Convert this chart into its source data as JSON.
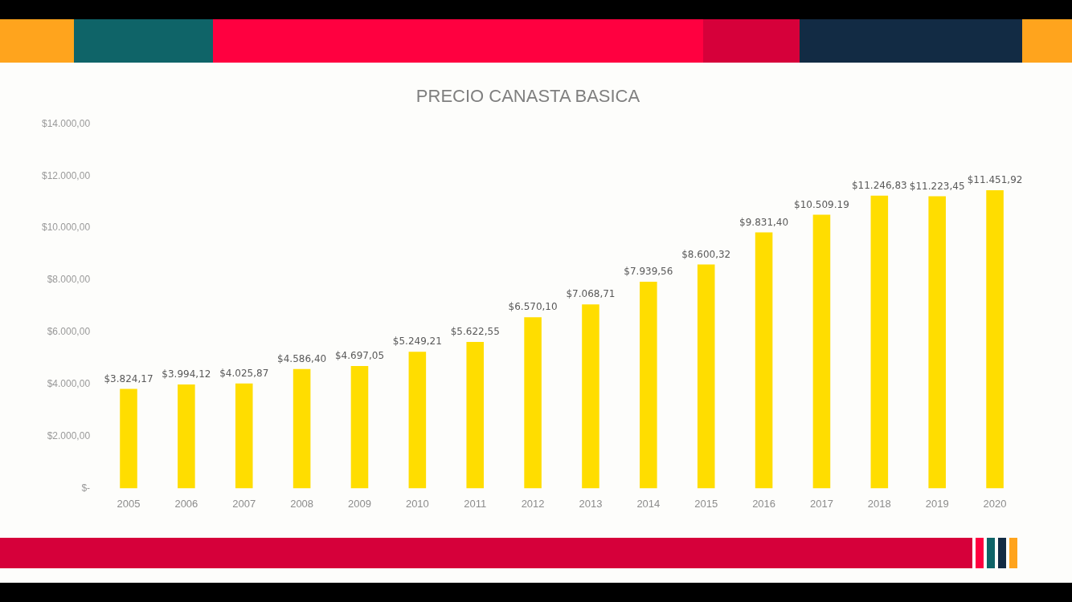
{
  "chart_data": {
    "type": "bar",
    "title": "PRECIO CANASTA BASICA",
    "categories": [
      "2005",
      "2006",
      "2007",
      "2008",
      "2009",
      "2010",
      "2011",
      "2012",
      "2013",
      "2014",
      "2015",
      "2016",
      "2017",
      "2018",
      "2019",
      "2020"
    ],
    "values": [
      3824.17,
      3994.12,
      4025.87,
      4586.4,
      4697.05,
      5249.21,
      5622.55,
      6570.1,
      7068.71,
      7939.56,
      8600.32,
      9831.4,
      10509.19,
      11246.83,
      11223.45,
      11451.92
    ],
    "value_labels": [
      "$3.824,17",
      "$3.994,12",
      "$4.025,87",
      "$4.586,40",
      "$4.697,05",
      "$5.249,21",
      "$5.622,55",
      "$6.570,10",
      "$7.068,71",
      "$7.939,56",
      "$8.600,32",
      "$9.831,40",
      "$10.509.19",
      "$11.246,83",
      "$11.223,45",
      "$11.451,92"
    ],
    "color": "#ffdd00",
    "ylim": [
      0,
      14000
    ],
    "yticks": [
      {
        "value": 0,
        "label": "$-"
      },
      {
        "value": 2000,
        "label": "$2.000,00"
      },
      {
        "value": 4000,
        "label": "$4.000,00"
      },
      {
        "value": 6000,
        "label": "$6.000,00"
      },
      {
        "value": 8000,
        "label": "$8.000,00"
      },
      {
        "value": 10000,
        "label": "$10.000,00"
      },
      {
        "value": 12000,
        "label": "$12.000,00"
      },
      {
        "value": 14000,
        "label": "$14.000,00"
      }
    ],
    "grid": false,
    "legend": false
  }
}
